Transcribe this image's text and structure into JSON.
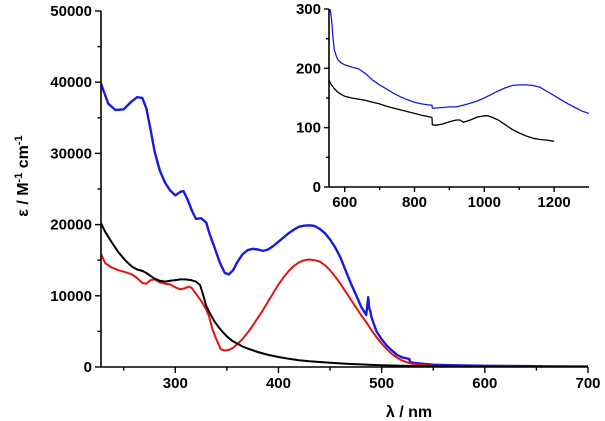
{
  "chart_data": [
    {
      "type": "line",
      "xlabel": "λ / nm",
      "ylabel": "ε / M",
      "ylabel_sup1": "-1",
      "ylabel_cm": " cm",
      "ylabel_sup2": "-1",
      "xlim": [
        228,
        700
      ],
      "ylim": [
        0,
        50000
      ],
      "xticks": [
        300,
        400,
        500,
        600,
        700
      ],
      "yticks": [
        0,
        10000,
        20000,
        30000,
        40000,
        50000
      ],
      "series": [
        {
          "name": "blue",
          "color": "#1a1adf",
          "x": [
            228,
            235,
            242,
            250,
            257,
            263,
            268,
            272,
            276,
            280,
            285,
            290,
            295,
            300,
            305,
            308,
            312,
            316,
            320,
            325,
            330,
            333,
            338,
            343,
            348,
            352,
            356,
            360,
            365,
            370,
            375,
            380,
            385,
            390,
            395,
            400,
            405,
            410,
            415,
            420,
            425,
            430,
            435,
            440,
            445,
            450,
            455,
            460,
            465,
            470,
            475,
            480,
            485,
            487,
            488,
            489,
            490,
            492,
            495,
            500,
            505,
            510,
            515,
            520,
            525,
            527,
            527.5,
            530,
            540,
            550,
            560,
            580,
            600,
            620,
            640,
            660,
            680,
            700
          ],
          "y": [
            39800,
            37000,
            36100,
            36200,
            37200,
            37900,
            37800,
            36300,
            33400,
            30200,
            27600,
            25900,
            24800,
            24100,
            24600,
            24700,
            23500,
            22000,
            20800,
            20900,
            20300,
            18800,
            16800,
            14700,
            13200,
            13000,
            13600,
            14700,
            15800,
            16400,
            16600,
            16500,
            16300,
            16500,
            17000,
            17600,
            18200,
            18800,
            19300,
            19700,
            19850,
            19900,
            19800,
            19400,
            18800,
            17900,
            16800,
            15400,
            13600,
            11800,
            10200,
            8500,
            7300,
            9800,
            8200,
            7900,
            7100,
            6200,
            5000,
            3900,
            3000,
            2300,
            1700,
            1350,
            1200,
            1100,
            700,
            600,
            450,
            330,
            270,
            210,
            170,
            150,
            120,
            100,
            90,
            80
          ]
        },
        {
          "name": "red",
          "color": "#e01414",
          "x": [
            228,
            232,
            238,
            245,
            252,
            258,
            263,
            268,
            272,
            276,
            280,
            285,
            290,
            295,
            300,
            305,
            310,
            313,
            316,
            320,
            325,
            330,
            333,
            336,
            340,
            344,
            348,
            352,
            356,
            360,
            365,
            370,
            375,
            380,
            385,
            390,
            395,
            400,
            405,
            410,
            415,
            420,
            425,
            430,
            435,
            440,
            445,
            450,
            455,
            460,
            465,
            470,
            475,
            480,
            485,
            490,
            495,
            500,
            505,
            510,
            515,
            520,
            525,
            530,
            540,
            550,
            560,
            580,
            600,
            620,
            650,
            700
          ],
          "y": [
            15900,
            14600,
            14000,
            13600,
            13300,
            13000,
            12500,
            11800,
            11700,
            12200,
            12300,
            11900,
            11700,
            11600,
            11200,
            10900,
            11100,
            11300,
            11100,
            10300,
            9300,
            8100,
            7000,
            5300,
            3800,
            2500,
            2300,
            2400,
            2700,
            3200,
            3900,
            4800,
            5800,
            6900,
            8000,
            9200,
            10400,
            11600,
            12600,
            13500,
            14200,
            14700,
            15000,
            15100,
            15000,
            14800,
            14300,
            13600,
            12700,
            11700,
            10600,
            9500,
            8400,
            7300,
            6300,
            5200,
            4200,
            3300,
            2500,
            1800,
            1300,
            900,
            650,
            450,
            280,
            180,
            120,
            80,
            60,
            50,
            40,
            30
          ]
        },
        {
          "name": "black",
          "color": "#000000",
          "x": [
            228,
            232,
            238,
            245,
            252,
            258,
            263,
            268,
            272,
            276,
            280,
            285,
            290,
            295,
            300,
            305,
            310,
            315,
            320,
            324,
            326,
            328,
            330,
            334,
            338,
            342,
            346,
            350,
            355,
            360,
            365,
            370,
            380,
            390,
            400,
            410,
            420,
            430,
            440,
            450,
            460,
            470,
            480,
            490,
            500,
            520,
            540,
            560,
            580,
            600,
            650,
            700
          ],
          "y": [
            20200,
            19000,
            17600,
            16100,
            14900,
            14100,
            13700,
            13500,
            13200,
            12800,
            12400,
            12100,
            12000,
            12100,
            12200,
            12300,
            12300,
            12200,
            12000,
            11500,
            10600,
            9600,
            8600,
            7400,
            6400,
            5600,
            4900,
            4300,
            3700,
            3300,
            2900,
            2600,
            2100,
            1700,
            1400,
            1150,
            950,
            800,
            700,
            600,
            500,
            420,
            360,
            300,
            250,
            180,
            120,
            80,
            60,
            50,
            30,
            20
          ]
        }
      ]
    },
    {
      "type": "line",
      "inset": true,
      "xlim": [
        555,
        1300
      ],
      "ylim": [
        0,
        300
      ],
      "xticks": [
        600,
        800,
        1000,
        1200
      ],
      "yticks": [
        0,
        100,
        200,
        300
      ],
      "series": [
        {
          "name": "blue",
          "color": "#1a1adf",
          "x": [
            558,
            562,
            566,
            570,
            575,
            580,
            590,
            600,
            620,
            640,
            660,
            680,
            700,
            720,
            740,
            760,
            780,
            800,
            820,
            845,
            850,
            851,
            860,
            880,
            900,
            920,
            940,
            960,
            980,
            1000,
            1020,
            1040,
            1060,
            1080,
            1100,
            1120,
            1140,
            1160,
            1180,
            1200,
            1220,
            1240,
            1260,
            1280,
            1300
          ],
          "y": [
            300,
            285,
            255,
            232,
            222,
            215,
            209,
            206,
            202,
            199,
            191,
            180,
            172,
            165,
            158,
            152,
            147,
            143,
            140,
            138,
            138,
            133,
            133,
            134,
            135,
            135,
            138,
            141,
            145,
            150,
            156,
            162,
            167,
            171,
            172,
            172,
            171,
            168,
            161,
            154,
            147,
            140,
            134,
            128,
            124
          ]
        },
        {
          "name": "black",
          "color": "#000000",
          "x": [
            555,
            560,
            570,
            580,
            590,
            600,
            620,
            640,
            660,
            680,
            700,
            720,
            740,
            760,
            780,
            800,
            820,
            845,
            850,
            851,
            860,
            880,
            900,
            920,
            930,
            940,
            960,
            980,
            1000,
            1010,
            1020,
            1040,
            1060,
            1080,
            1100,
            1120,
            1140,
            1160,
            1180,
            1200
          ],
          "y": [
            180,
            174,
            166,
            160,
            156,
            153,
            150,
            148,
            146,
            143,
            140,
            136,
            133,
            130,
            127,
            124,
            121,
            118,
            117,
            105,
            104,
            106,
            110,
            113,
            113,
            109,
            113,
            118,
            120,
            120,
            118,
            113,
            105,
            97,
            91,
            86,
            82,
            80,
            79,
            77
          ]
        }
      ]
    }
  ]
}
